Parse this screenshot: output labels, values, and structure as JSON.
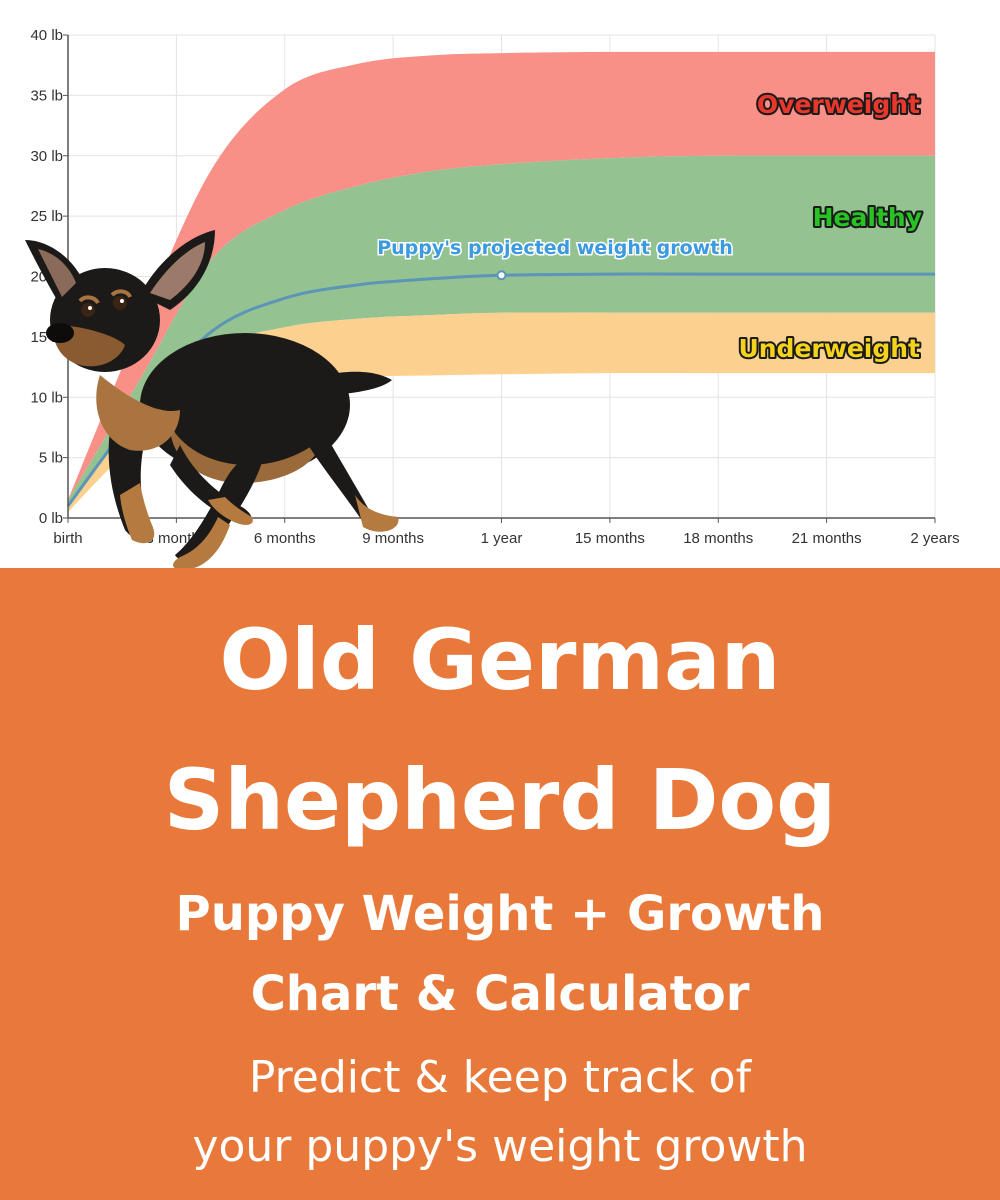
{
  "colors": {
    "overweight": "#f99088",
    "healthy": "#94c291",
    "underweight": "#fcd08f",
    "projection": "#5b95b7",
    "banner": "#e9793a",
    "overweight_text": "#e8372c",
    "healthy_text": "#29c225",
    "underweight_text": "#f5d31c",
    "projection_text": "#3b9ae0"
  },
  "chart_data": {
    "type": "area",
    "x_unit": "months",
    "x_ticks": [
      {
        "value": 0,
        "label": "birth"
      },
      {
        "value": 3,
        "label": "3 months"
      },
      {
        "value": 6,
        "label": "6 months"
      },
      {
        "value": 9,
        "label": "9 months"
      },
      {
        "value": 12,
        "label": "1 year"
      },
      {
        "value": 15,
        "label": "15 months"
      },
      {
        "value": 18,
        "label": "18 months"
      },
      {
        "value": 21,
        "label": "21 months"
      },
      {
        "value": 24,
        "label": "2 years"
      }
    ],
    "y_ticks": [
      {
        "value": 0,
        "label": "0 lb"
      },
      {
        "value": 5,
        "label": "5 lb"
      },
      {
        "value": 10,
        "label": "10 lb"
      },
      {
        "value": 15,
        "label": "15 lb"
      },
      {
        "value": 20,
        "label": "20 lb"
      },
      {
        "value": 25,
        "label": "25 lb"
      },
      {
        "value": 30,
        "label": "30 lb"
      },
      {
        "value": 35,
        "label": "35 lb"
      },
      {
        "value": 40,
        "label": "40 lb"
      }
    ],
    "xlim": [
      0,
      24
    ],
    "ylim": [
      0,
      40
    ],
    "grid": true,
    "bands": [
      {
        "name": "Overweight",
        "x": [
          0,
          2,
          4,
          6,
          8,
          10,
          12,
          15,
          18,
          24
        ],
        "lower": [
          1.5,
          11.5,
          21.5,
          25.5,
          27.5,
          28.7,
          29.3,
          29.8,
          30,
          30
        ],
        "upper": [
          1.5,
          16,
          29,
          35.5,
          37.6,
          38.3,
          38.5,
          38.6,
          38.6,
          38.6
        ]
      },
      {
        "name": "Healthy",
        "x": [
          0,
          2,
          4,
          6,
          8,
          10,
          12,
          15,
          18,
          24
        ],
        "lower": [
          1,
          8.5,
          14,
          15.8,
          16.5,
          16.8,
          17,
          17,
          17,
          17
        ],
        "upper": [
          1.5,
          11.5,
          21.5,
          25.5,
          27.5,
          28.7,
          29.3,
          29.8,
          30,
          30
        ]
      },
      {
        "name": "Underweight",
        "x": [
          0,
          2,
          4,
          6,
          8,
          10,
          12,
          15,
          18,
          24
        ],
        "lower": [
          0.5,
          6.5,
          10.3,
          11.3,
          11.7,
          11.8,
          11.9,
          12,
          12,
          12
        ],
        "upper": [
          1,
          8.5,
          14,
          15.8,
          16.5,
          16.8,
          17,
          17,
          17,
          17
        ]
      }
    ],
    "series": [
      {
        "name": "Puppy's projected weight growth",
        "x": [
          0,
          2,
          4,
          6,
          8,
          10,
          12,
          15,
          18,
          24
        ],
        "values": [
          1,
          9,
          15.5,
          18.2,
          19.3,
          19.8,
          20.1,
          20.2,
          20.2,
          20.2
        ],
        "marker_x": 12
      }
    ],
    "annotations": [
      "Overweight",
      "Healthy",
      "Underweight",
      "Puppy's projected weight growth"
    ]
  },
  "banner": {
    "title_line1": "Old German",
    "title_line2": "Shepherd Dog",
    "subtitle_line1": "Puppy Weight + Growth",
    "subtitle_line2": "Chart & Calculator",
    "desc_line1": "Predict & keep track of",
    "desc_line2": "your puppy's weight growth"
  }
}
